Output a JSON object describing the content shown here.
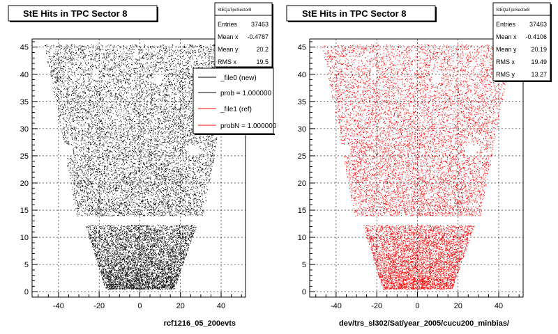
{
  "colors": {
    "reference": "#000000",
    "new": "#ff0000",
    "background": "#ffffff"
  },
  "chart_data": [
    {
      "type": "scatter",
      "title": "StE Hits in TPC Sector 8",
      "xlabel": "rcf1216_05_200evts",
      "ylabel": "",
      "xlim": [
        -53,
        52
      ],
      "ylim": [
        -1,
        46.5
      ],
      "x_ticks": [
        "-40",
        "-20",
        "0",
        "20",
        "40"
      ],
      "y_ticks": [
        "0",
        "5",
        "10",
        "15",
        "20",
        "25",
        "30",
        "35",
        "40",
        "45"
      ],
      "grid": true,
      "point_color": "#000000",
      "stats_box": {
        "name": "StEQaTpcSector8",
        "rows": [
          {
            "label": "Entries",
            "value": "37463"
          },
          {
            "label": "Mean x",
            "value": "-0.4787"
          },
          {
            "label": "Mean y",
            "value": "20.2"
          },
          {
            "label": "RMS x",
            "value": "19.5"
          }
        ]
      },
      "legend": {
        "placement": "top-right",
        "entries": [
          {
            "label": "_file0 (new)",
            "color": "#000000"
          },
          {
            "label": "prob = 1.000000",
            "color": "#000000"
          },
          {
            "label": "_file1 (ref)",
            "color": "#ff0000"
          },
          {
            "label": "probN = 1.000000",
            "color": "#ff0000"
          }
        ]
      },
      "caption": "rcf1216_05_200evts"
    },
    {
      "type": "scatter",
      "title": "StE Hits in TPC Sector 8",
      "xlabel": "dev/trs_sl302/Sat/year_2005/cucu200_minbias/",
      "ylabel": "",
      "xlim": [
        -53,
        52
      ],
      "ylim": [
        -1,
        46.5
      ],
      "x_ticks": [
        "-40",
        "-20",
        "0",
        "20",
        "40"
      ],
      "y_ticks": [
        "0",
        "5",
        "10",
        "15",
        "20",
        "25",
        "30",
        "35",
        "40",
        "45"
      ],
      "grid": true,
      "point_color": "#ff0000",
      "stats_box": {
        "name": "StEQaTpcSector8",
        "rows": [
          {
            "label": "Entries",
            "value": "37463"
          },
          {
            "label": "Mean x",
            "value": "-0.4106"
          },
          {
            "label": "Mean y",
            "value": "20.19"
          },
          {
            "label": "RMS x",
            "value": "19.49"
          },
          {
            "label": "RMS y",
            "value": "13.27"
          }
        ]
      },
      "caption": "dev/trs_sl302/Sat/year_2005/cucu200_minbias/"
    }
  ]
}
